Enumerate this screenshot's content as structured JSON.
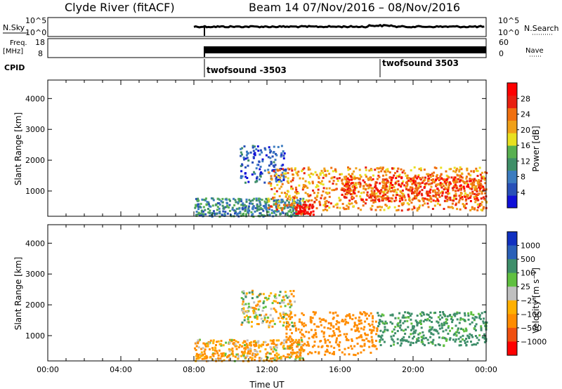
{
  "title_left": "Clyde River (fitACF)",
  "title_right": "Beam 14  07/Nov/2016 – 08/Nov/2016",
  "top_panel_1": {
    "left_label": "N.Sky",
    "left_ticks": [
      "10^5",
      "10^0"
    ],
    "right_ticks": [
      "10^5",
      "10^0"
    ],
    "right_label": "N.Search"
  },
  "top_panel_2": {
    "left_label_1": "Freq.",
    "left_label_2": "[MHz]",
    "left_ticks": [
      "18",
      "8"
    ],
    "right_ticks": [
      "60",
      "0"
    ],
    "right_label": "Nave"
  },
  "cpid": {
    "label": "CPID",
    "programs": [
      {
        "name": "twofsound -3503",
        "start_hour": 8
      },
      {
        "name": "twofsound 3503",
        "start_hour": 18
      }
    ]
  },
  "colors": {
    "power": [
      "#1010d8",
      "#2850b8",
      "#3c7cc0",
      "#3f8f68",
      "#58b050",
      "#e8e020",
      "#f0a018",
      "#f07010",
      "#e82010",
      "#ff0000"
    ],
    "velocity": [
      "#1030c0",
      "#2a60b8",
      "#3e8e6a",
      "#60c040",
      "#c0c0c0",
      "#ffb000",
      "#ff8c00",
      "#f05010",
      "#ff0000"
    ]
  },
  "chart_data": [
    {
      "type": "heatmap",
      "name": "Power",
      "ylabel": "Slant Range [km]",
      "xlabel": "",
      "x_range_hours": [
        0,
        24
      ],
      "ylim": [
        180,
        4600
      ],
      "y_ticks": [
        1000,
        2000,
        3000,
        4000
      ],
      "colorbar": {
        "label": "Power [dB]",
        "min": 0,
        "max": 32,
        "ticks": [
          4,
          8,
          12,
          16,
          20,
          24,
          28
        ]
      },
      "regions": [
        {
          "hours": [
            8,
            14
          ],
          "range_km": [
            200,
            800
          ],
          "value": 10
        },
        {
          "hours": [
            10.5,
            13
          ],
          "range_km": [
            1300,
            2500
          ],
          "value": 6
        },
        {
          "hours": [
            12,
            24
          ],
          "range_km": [
            400,
            1800
          ],
          "value": 22
        },
        {
          "hours": [
            16,
            24
          ],
          "range_km": [
            700,
            1500
          ],
          "value": 26
        },
        {
          "hours": [
            13.5,
            14.5
          ],
          "range_km": [
            250,
            600
          ],
          "value": 30
        }
      ]
    },
    {
      "type": "heatmap",
      "name": "Velocity",
      "ylabel": "Slant Range [km]",
      "xlabel": "Time UT",
      "x_range_hours": [
        0,
        24
      ],
      "ylim": [
        180,
        4600
      ],
      "y_ticks": [
        1000,
        2000,
        3000,
        4000
      ],
      "x_tick_labels": [
        "00:00",
        "04:00",
        "08:00",
        "12:00",
        "16:00",
        "20:00",
        "00:00"
      ],
      "colorbar": {
        "label": "Velocity [m s-1]",
        "ticks": [
          "1000",
          "500",
          "100",
          "25",
          "−25",
          "−100",
          "−500",
          "−1000"
        ]
      },
      "regions": [
        {
          "hours": [
            8,
            14
          ],
          "range_km": [
            200,
            900
          ],
          "value": -100
        },
        {
          "hours": [
            10.5,
            13.5
          ],
          "range_km": [
            1300,
            2500
          ],
          "value": 0
        },
        {
          "hours": [
            13,
            18
          ],
          "range_km": [
            400,
            1800
          ],
          "value": -300
        },
        {
          "hours": [
            18,
            24
          ],
          "range_km": [
            700,
            1800
          ],
          "value": 200
        }
      ]
    }
  ]
}
